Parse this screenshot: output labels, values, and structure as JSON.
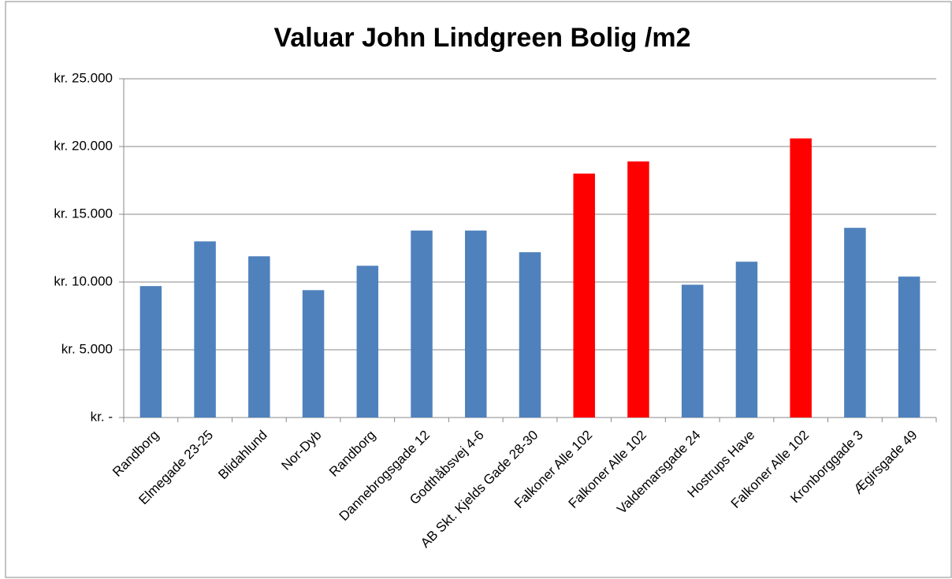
{
  "chart_data": {
    "type": "bar",
    "title": "Valuar John Lindgreen Bolig /m2",
    "categories": [
      "Randborg",
      "Elmegade 23-25",
      "Blidahlund",
      "Nor-Dyb",
      "Randborg",
      "Dannebrogsgade 12",
      "Godthåbsvej 4-6",
      "AB Skt. Kjelds Gade 28-30",
      "Falkoner  Alle 102",
      "Falkoner  Alle 102",
      "Valdemarsgade 24",
      "Hostrups Have",
      "Falkoner  Alle 102",
      "Kronborggade 3",
      "Ægirsgade 49"
    ],
    "values": [
      9700,
      13000,
      11900,
      9400,
      11200,
      13800,
      13800,
      12200,
      18000,
      18900,
      9800,
      11500,
      20600,
      14000,
      10400
    ],
    "colors": [
      "#4f81bd",
      "#4f81bd",
      "#4f81bd",
      "#4f81bd",
      "#4f81bd",
      "#4f81bd",
      "#4f81bd",
      "#4f81bd",
      "#ff0000",
      "#ff0000",
      "#4f81bd",
      "#4f81bd",
      "#ff0000",
      "#4f81bd",
      "#4f81bd"
    ],
    "ylim": [
      0,
      25000
    ],
    "yticks": [
      {
        "value": 0,
        "label": "kr. -"
      },
      {
        "value": 5000,
        "label": "kr. 5.000"
      },
      {
        "value": 10000,
        "label": "kr. 10.000"
      },
      {
        "value": 15000,
        "label": "kr. 15.000"
      },
      {
        "value": 20000,
        "label": "kr. 20.000"
      },
      {
        "value": 25000,
        "label": "kr. 25.000"
      }
    ],
    "grid": true
  }
}
